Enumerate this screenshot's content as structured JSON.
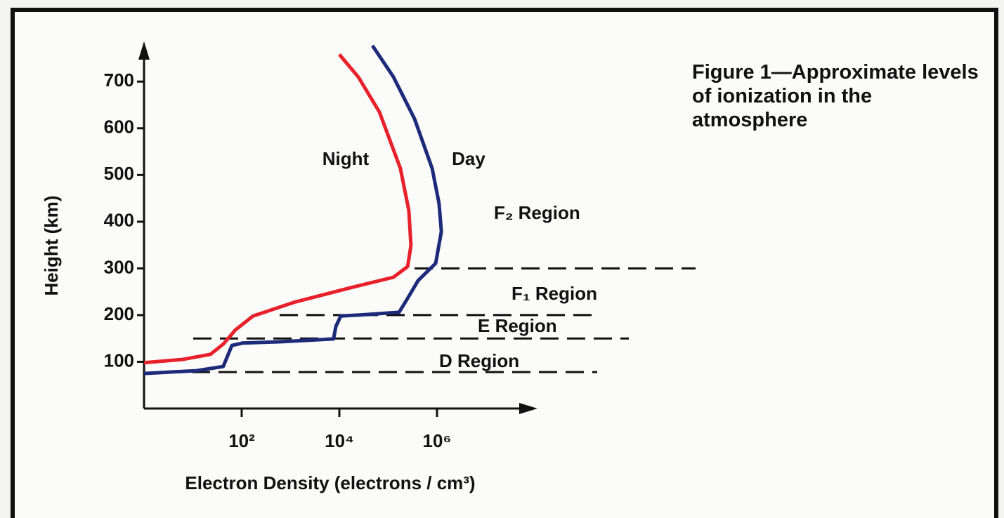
{
  "chart_data": {
    "type": "line",
    "title": "Figure 1—Approximate levels of ionization in the atmosphere",
    "xlabel": "Electron Density (electrons / cm³)",
    "ylabel": "Height (km)",
    "xscale": "log",
    "xlim": [
      1,
      100000000
    ],
    "ylim": [
      0,
      780
    ],
    "xticks": [
      {
        "value": 100,
        "label": "10²"
      },
      {
        "value": 10000,
        "label": "10⁴"
      },
      {
        "value": 1000000,
        "label": "10⁶"
      }
    ],
    "yticks": [
      100,
      200,
      300,
      400,
      500,
      600,
      700
    ],
    "series": [
      {
        "name": "Night",
        "color": "#e8202a",
        "x": [
          1,
          6.2,
          23,
          42,
          74,
          170,
          1240,
          17500,
          128000,
          250000,
          293000,
          265000,
          178000,
          66000,
          24400,
          10000
        ],
        "values": [
          98,
          105,
          116,
          138,
          168,
          198,
          228,
          259,
          281,
          304,
          349,
          424,
          514,
          635,
          710,
          758
        ]
      },
      {
        "name": "Day",
        "color": "#1c2a7a",
        "x": [
          1,
          12,
          42,
          53,
          63,
          103,
          640,
          7600,
          8500,
          10700,
          34000,
          167000,
          250000,
          410000,
          940000,
          1230000,
          1100000,
          795000,
          347000,
          128000,
          47600
        ],
        "values": [
          75,
          81,
          90,
          116,
          135,
          140,
          143,
          149,
          176,
          198,
          201,
          206,
          236,
          274,
          311,
          379,
          439,
          514,
          620,
          710,
          777
        ]
      }
    ],
    "regions": [
      {
        "label": "F₂ Region",
        "height": 300
      },
      {
        "label": "F₁ Region",
        "height": 200
      },
      {
        "label": "E Region",
        "height": 150
      },
      {
        "label": "D Region",
        "height": 78
      }
    ]
  }
}
